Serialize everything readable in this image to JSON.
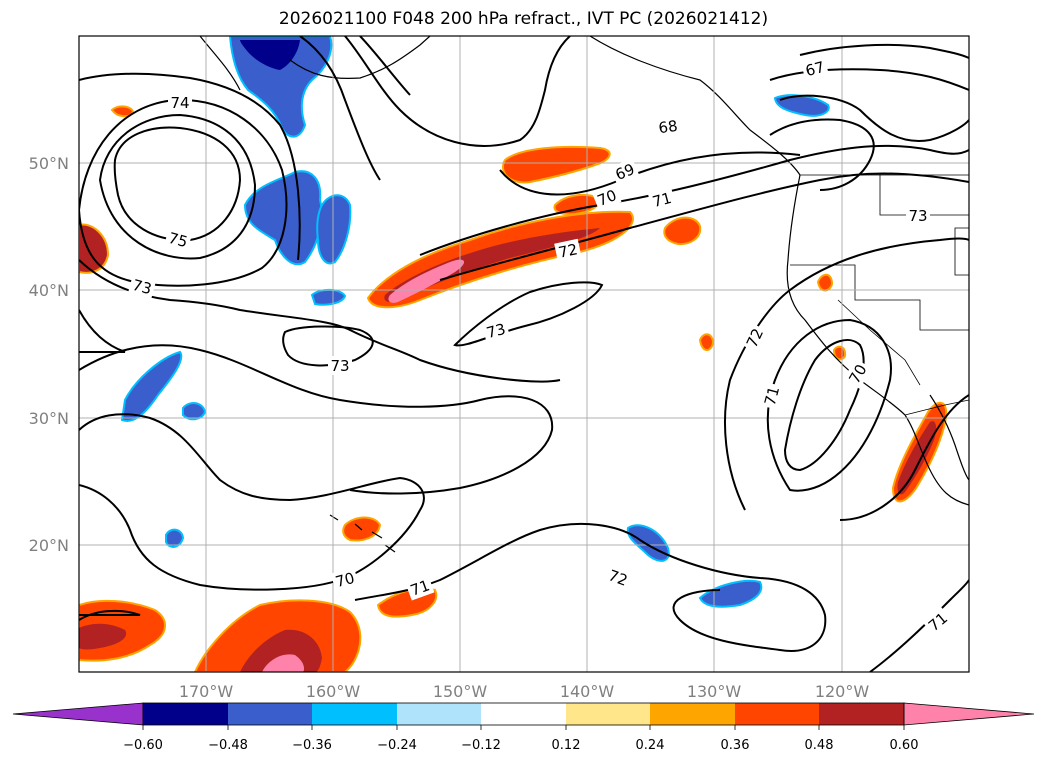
{
  "title": "2026021100 F048 200 hPa refract., IVT PC (2026021412)",
  "lat_labels": [
    "50°N",
    "40°N",
    "30°N",
    "20°N"
  ],
  "lon_labels": [
    "170°W",
    "160°W",
    "150°W",
    "140°W",
    "130°W",
    "120°W"
  ],
  "contour_labels": [
    "74",
    "75",
    "73",
    "73",
    "73",
    "68",
    "69",
    "70",
    "71",
    "72",
    "67",
    "73",
    "72",
    "71",
    "70",
    "70",
    "71",
    "72",
    "71"
  ],
  "colorbar": {
    "ticks": [
      "−0.60",
      "−0.48",
      "−0.36",
      "−0.24",
      "−0.12",
      "0.12",
      "0.24",
      "0.36",
      "0.48",
      "0.60"
    ],
    "colors": [
      "#9932cc",
      "#00008b",
      "#3a5fcd",
      "#00bfff",
      "#aee3fb",
      "#ffffff",
      "#ffe68a",
      "#ffa500",
      "#ff4500",
      "#b22222",
      "#ff82ab",
      "#ff82ab"
    ]
  },
  "colors": {
    "contour": "#000000",
    "grid": "#b0b0b0",
    "coast": "#000000"
  }
}
